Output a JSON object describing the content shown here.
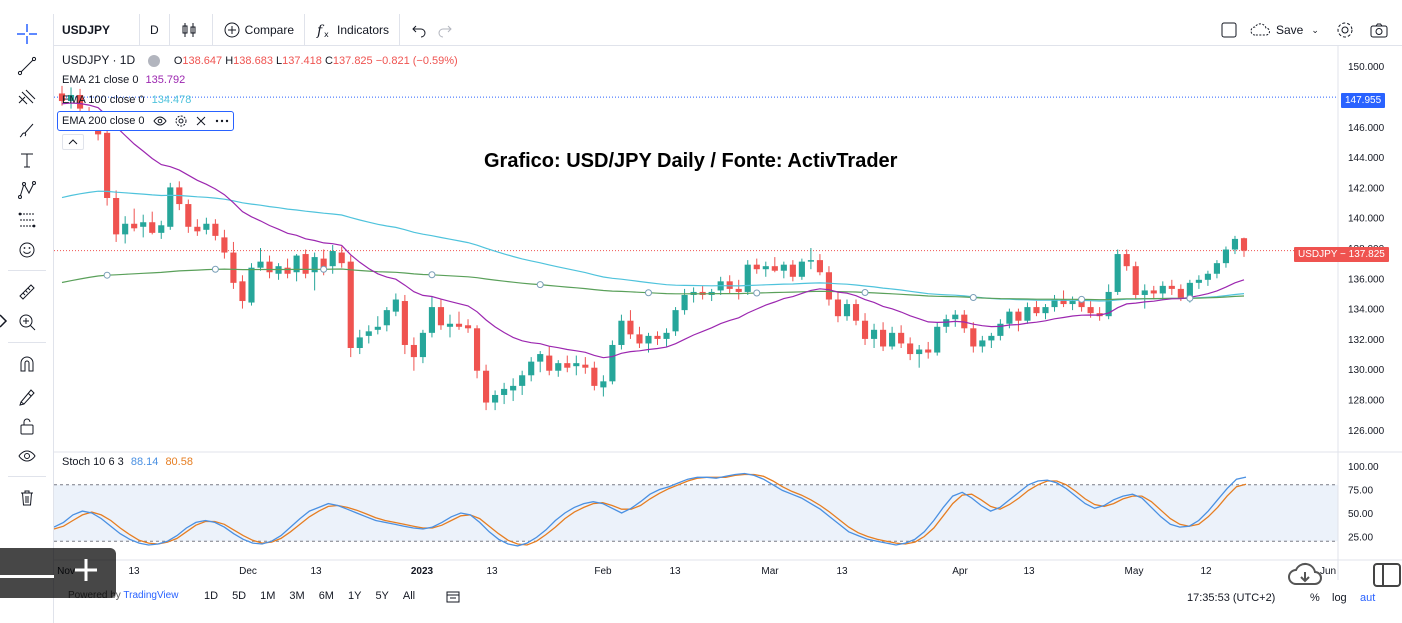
{
  "toolbar": {
    "symbol": "USDJPY",
    "interval": "D",
    "compare_label": "Compare",
    "indicators_label": "Indicators",
    "save_label": "Save"
  },
  "legend": {
    "symbol_line": "USDJPY · 1D",
    "open_k": "O",
    "open": "138.647",
    "high_k": "H",
    "high": "138.683",
    "low_k": "L",
    "low": "137.418",
    "close_k": "C",
    "close": "137.825",
    "change": "−0.821 (−0.59%)",
    "ema21_label": "EMA 21 close 0",
    "ema21_value": "135.792",
    "ema100_label": "EMA 100 close 0",
    "ema100_value": "134.478",
    "ema200_label": "EMA 200 close 0",
    "stoch_label": "Stoch 10 6 3",
    "stoch_k": "88.14",
    "stoch_d": "80.58"
  },
  "watermark_title": "Grafico: USD/JPY Daily / Fonte: ActivTrader",
  "price_tags": {
    "hline": "147.955",
    "last": "USDJPY − 137.825"
  },
  "time_axis": [
    "Nov",
    "13",
    "Dec",
    "13",
    "2023",
    "13",
    "Feb",
    "13",
    "Mar",
    "13",
    "Apr",
    "13",
    "May",
    "12",
    "Jun"
  ],
  "bottom": {
    "ranges": [
      "1D",
      "5D",
      "1M",
      "3M",
      "6M",
      "1Y",
      "5Y",
      "All"
    ],
    "powered_prefix": "Powered by ",
    "powered_brand": "TradingView",
    "clock": "17:35:53 (UTC+2)",
    "percent": "%",
    "log": "log",
    "auto": "aut"
  },
  "colors": {
    "up": "#26a69a",
    "down": "#ef5350",
    "ema21": "#9c27b0",
    "ema100": "#4fc3dc",
    "ema200": "#5aa05a",
    "stoch_k": "#4a90e2",
    "stoch_d": "#e67e22",
    "hline": "#2962ff"
  },
  "icons": [
    "crosshair-icon",
    "trend-line-icon",
    "pitchfork-icon",
    "brush-icon",
    "text-icon",
    "pattern-icon",
    "forecast-icon",
    "emoji-icon",
    "ruler-icon",
    "zoom-in-icon",
    "magnet-icon",
    "lock-drawings-icon",
    "lock-icon",
    "eye-icon",
    "trash-icon",
    "undo-icon",
    "redo-icon",
    "fullscreen-icon",
    "settings-icon",
    "camera-icon",
    "cloud-save-icon",
    "candle-style-icon",
    "plus-icon",
    "cloud-download-icon"
  ],
  "chart_data": {
    "type": "candlestick",
    "price_range": [
      124.8,
      151.2
    ],
    "price_ticks": [
      "150.000",
      "148.000",
      "146.000",
      "144.000",
      "142.000",
      "140.000",
      "138.000",
      "136.000",
      "134.000",
      "132.000",
      "130.000",
      "128.000",
      "126.000"
    ],
    "horizontal_line": 147.955,
    "last_price": 137.825,
    "candles": [
      [
        148.2,
        148.7,
        147.4,
        147.7
      ],
      [
        147.7,
        148.6,
        147.2,
        148.1
      ],
      [
        148.1,
        148.5,
        146.9,
        147.2
      ],
      [
        146.8,
        147.3,
        146.0,
        146.4
      ],
      [
        146.4,
        146.8,
        145.1,
        145.5
      ],
      [
        145.6,
        146.1,
        140.8,
        141.3
      ],
      [
        141.3,
        141.8,
        138.4,
        138.9
      ],
      [
        138.9,
        140.1,
        138.3,
        139.6
      ],
      [
        139.6,
        140.6,
        139.1,
        139.3
      ],
      [
        139.4,
        140.2,
        138.7,
        139.7
      ],
      [
        139.7,
        140.4,
        138.9,
        139.0
      ],
      [
        139.0,
        139.8,
        138.6,
        139.5
      ],
      [
        139.4,
        142.3,
        139.2,
        142.0
      ],
      [
        142.0,
        142.4,
        140.5,
        140.9
      ],
      [
        140.9,
        141.2,
        139.0,
        139.4
      ],
      [
        139.4,
        139.9,
        138.8,
        139.1
      ],
      [
        139.2,
        140.0,
        138.9,
        139.6
      ],
      [
        139.6,
        139.9,
        138.5,
        138.8
      ],
      [
        138.7,
        139.2,
        137.3,
        137.7
      ],
      [
        137.7,
        138.4,
        135.3,
        135.7
      ],
      [
        135.8,
        136.2,
        134.0,
        134.5
      ],
      [
        134.4,
        137.0,
        134.2,
        136.7
      ],
      [
        136.7,
        138.0,
        136.5,
        137.1
      ],
      [
        137.1,
        137.5,
        136.0,
        136.4
      ],
      [
        136.3,
        137.0,
        135.9,
        136.8
      ],
      [
        136.7,
        137.3,
        136.0,
        136.3
      ],
      [
        136.4,
        137.6,
        135.8,
        137.5
      ],
      [
        137.6,
        137.9,
        136.0,
        136.3
      ],
      [
        136.4,
        137.7,
        135.2,
        137.4
      ],
      [
        137.3,
        137.9,
        136.2,
        136.7
      ],
      [
        136.8,
        138.2,
        136.3,
        137.8
      ],
      [
        137.7,
        138.1,
        136.7,
        137.0
      ],
      [
        137.1,
        137.5,
        130.8,
        131.4
      ],
      [
        131.4,
        132.6,
        131.0,
        132.1
      ],
      [
        132.2,
        132.9,
        131.7,
        132.5
      ],
      [
        132.6,
        133.5,
        132.3,
        132.8
      ],
      [
        132.9,
        134.1,
        132.5,
        133.9
      ],
      [
        133.8,
        135.0,
        133.5,
        134.6
      ],
      [
        134.5,
        134.9,
        131.0,
        131.6
      ],
      [
        131.6,
        132.1,
        129.9,
        130.8
      ],
      [
        130.8,
        132.6,
        130.4,
        132.4
      ],
      [
        132.4,
        134.8,
        132.1,
        134.1
      ],
      [
        134.1,
        134.6,
        132.6,
        132.9
      ],
      [
        132.8,
        133.6,
        132.1,
        133.0
      ],
      [
        133.0,
        133.8,
        132.6,
        132.8
      ],
      [
        132.9,
        133.3,
        132.4,
        132.7
      ],
      [
        132.7,
        132.9,
        129.4,
        129.9
      ],
      [
        129.9,
        130.3,
        127.3,
        127.8
      ],
      [
        127.8,
        128.6,
        127.3,
        128.3
      ],
      [
        128.3,
        129.1,
        127.7,
        128.7
      ],
      [
        128.6,
        129.4,
        127.9,
        128.9
      ],
      [
        128.9,
        129.9,
        128.3,
        129.6
      ],
      [
        129.6,
        130.8,
        129.2,
        130.5
      ],
      [
        130.5,
        131.2,
        129.8,
        131.0
      ],
      [
        130.9,
        131.5,
        129.6,
        129.9
      ],
      [
        129.9,
        130.6,
        129.5,
        130.4
      ],
      [
        130.4,
        130.9,
        129.8,
        130.1
      ],
      [
        130.2,
        130.9,
        129.6,
        130.4
      ],
      [
        130.3,
        130.8,
        129.7,
        130.1
      ],
      [
        130.1,
        130.5,
        128.6,
        128.9
      ],
      [
        128.8,
        129.6,
        128.2,
        129.2
      ],
      [
        129.2,
        131.9,
        129.0,
        131.6
      ],
      [
        131.6,
        133.6,
        131.3,
        133.2
      ],
      [
        133.2,
        133.9,
        132.0,
        132.3
      ],
      [
        132.3,
        132.8,
        131.4,
        131.7
      ],
      [
        131.7,
        132.4,
        131.1,
        132.2
      ],
      [
        132.2,
        132.5,
        131.6,
        132.0
      ],
      [
        132.0,
        132.7,
        131.5,
        132.4
      ],
      [
        132.5,
        134.1,
        132.2,
        133.9
      ],
      [
        133.9,
        135.3,
        133.6,
        134.9
      ],
      [
        134.9,
        135.4,
        134.4,
        135.1
      ],
      [
        135.1,
        135.5,
        134.6,
        134.9
      ],
      [
        134.9,
        135.3,
        134.5,
        135.1
      ],
      [
        135.2,
        136.1,
        134.9,
        135.8
      ],
      [
        135.8,
        136.2,
        135.0,
        135.3
      ],
      [
        135.3,
        135.9,
        134.6,
        135.1
      ],
      [
        135.1,
        137.2,
        134.9,
        136.9
      ],
      [
        136.9,
        137.3,
        136.3,
        136.6
      ],
      [
        136.6,
        137.1,
        136.1,
        136.8
      ],
      [
        136.8,
        137.4,
        136.4,
        136.5
      ],
      [
        136.5,
        137.1,
        136.0,
        136.9
      ],
      [
        136.9,
        137.2,
        135.8,
        136.1
      ],
      [
        136.1,
        137.3,
        135.9,
        137.1
      ],
      [
        137.1,
        138.0,
        136.6,
        137.2
      ],
      [
        137.2,
        137.6,
        136.2,
        136.4
      ],
      [
        136.4,
        136.8,
        134.2,
        134.6
      ],
      [
        134.6,
        135.1,
        133.1,
        133.5
      ],
      [
        133.5,
        134.6,
        133.2,
        134.3
      ],
      [
        134.3,
        134.6,
        132.9,
        133.2
      ],
      [
        133.2,
        133.7,
        131.6,
        132.0
      ],
      [
        132.0,
        133.0,
        131.4,
        132.6
      ],
      [
        132.6,
        133.1,
        131.2,
        131.5
      ],
      [
        131.5,
        132.8,
        131.3,
        132.4
      ],
      [
        132.4,
        132.9,
        131.4,
        131.7
      ],
      [
        131.7,
        132.1,
        130.6,
        131.0
      ],
      [
        131.0,
        131.6,
        130.1,
        131.3
      ],
      [
        131.3,
        131.8,
        130.7,
        131.1
      ],
      [
        131.1,
        133.1,
        130.9,
        132.8
      ],
      [
        132.8,
        133.6,
        132.4,
        133.3
      ],
      [
        133.3,
        133.9,
        132.8,
        133.6
      ],
      [
        133.6,
        133.9,
        132.4,
        132.7
      ],
      [
        132.7,
        133.1,
        131.1,
        131.5
      ],
      [
        131.5,
        132.2,
        131.1,
        131.9
      ],
      [
        131.9,
        132.4,
        131.4,
        132.2
      ],
      [
        132.2,
        133.3,
        131.9,
        133.0
      ],
      [
        133.0,
        134.0,
        132.7,
        133.8
      ],
      [
        133.8,
        134.0,
        132.5,
        133.2
      ],
      [
        133.2,
        134.4,
        133.0,
        134.1
      ],
      [
        134.1,
        134.5,
        133.5,
        133.7
      ],
      [
        133.7,
        134.3,
        133.3,
        134.1
      ],
      [
        134.1,
        134.9,
        133.8,
        134.6
      ],
      [
        134.6,
        135.2,
        134.1,
        134.3
      ],
      [
        134.3,
        134.8,
        133.9,
        134.5
      ],
      [
        134.5,
        134.8,
        133.8,
        134.1
      ],
      [
        134.1,
        134.5,
        133.4,
        133.7
      ],
      [
        133.7,
        134.1,
        133.2,
        133.5
      ],
      [
        133.5,
        135.6,
        133.3,
        135.1
      ],
      [
        135.1,
        137.9,
        134.9,
        137.6
      ],
      [
        137.6,
        137.9,
        136.5,
        136.8
      ],
      [
        136.8,
        137.1,
        134.6,
        134.9
      ],
      [
        134.9,
        135.6,
        134.0,
        135.2
      ],
      [
        135.2,
        135.5,
        134.6,
        135.0
      ],
      [
        135.0,
        135.8,
        134.6,
        135.5
      ],
      [
        135.5,
        135.9,
        134.9,
        135.3
      ],
      [
        135.3,
        135.6,
        134.5,
        134.7
      ],
      [
        134.7,
        135.9,
        134.4,
        135.7
      ],
      [
        135.7,
        136.2,
        135.3,
        135.9
      ],
      [
        135.9,
        136.5,
        135.5,
        136.3
      ],
      [
        136.3,
        137.2,
        136.0,
        137.0
      ],
      [
        137.0,
        138.1,
        136.7,
        137.9
      ],
      [
        137.9,
        138.8,
        137.6,
        138.6
      ],
      [
        138.647,
        138.683,
        137.418,
        137.825
      ]
    ],
    "stochastic": {
      "levels": [
        80,
        20
      ],
      "ticks": [
        "100.00",
        "75.00",
        "50.00",
        "25.00"
      ],
      "k": [
        35,
        40,
        48,
        52,
        50,
        44,
        36,
        28,
        22,
        18,
        16,
        17,
        20,
        26,
        34,
        40,
        42,
        40,
        35,
        28,
        22,
        18,
        17,
        20,
        26,
        35,
        44,
        52,
        56,
        60,
        58,
        54,
        50,
        46,
        42,
        40,
        38,
        36,
        34,
        33,
        35,
        40,
        46,
        50,
        48,
        40,
        30,
        22,
        17,
        15,
        18,
        24,
        32,
        42,
        50,
        56,
        60,
        62,
        60,
        55,
        50,
        55,
        62,
        70,
        75,
        78,
        82,
        86,
        88,
        88,
        87,
        89,
        91,
        92,
        90,
        86,
        80,
        74,
        70,
        66,
        60,
        54,
        46,
        38,
        30,
        26,
        22,
        20,
        18,
        16,
        18,
        22,
        30,
        42,
        56,
        68,
        72,
        66,
        58,
        52,
        56,
        64,
        72,
        80,
        84,
        85,
        82,
        76,
        68,
        60,
        55,
        58,
        64,
        68,
        70,
        66,
        56,
        46,
        38,
        35,
        36,
        42,
        52,
        64,
        76,
        86,
        88.14
      ],
      "d": [
        33,
        36,
        42,
        48,
        51,
        48,
        42,
        34,
        27,
        21,
        18,
        17,
        19,
        23,
        30,
        37,
        41,
        41,
        38,
        32,
        26,
        21,
        18,
        19,
        23,
        30,
        38,
        46,
        52,
        57,
        58,
        56,
        53,
        49,
        45,
        42,
        40,
        38,
        36,
        34,
        34,
        37,
        42,
        47,
        48,
        44,
        36,
        28,
        21,
        17,
        16,
        20,
        27,
        35,
        44,
        51,
        56,
        60,
        61,
        58,
        54,
        54,
        58,
        65,
        71,
        76,
        80,
        84,
        87,
        88,
        88,
        88,
        90,
        91,
        91,
        89,
        84,
        78,
        73,
        69,
        64,
        58,
        51,
        43,
        35,
        29,
        25,
        22,
        20,
        18,
        17,
        19,
        25,
        34,
        47,
        60,
        69,
        70,
        64,
        57,
        54,
        59,
        66,
        74,
        80,
        84,
        84,
        80,
        73,
        65,
        59,
        57,
        60,
        65,
        68,
        68,
        62,
        53,
        44,
        38,
        36,
        38,
        46,
        56,
        68,
        78,
        80.58
      ]
    }
  }
}
